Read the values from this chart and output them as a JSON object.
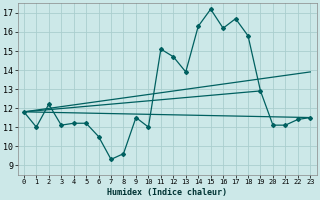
{
  "xlabel": "Humidex (Indice chaleur)",
  "x_ticks": [
    0,
    1,
    2,
    3,
    4,
    5,
    6,
    7,
    8,
    9,
    10,
    11,
    12,
    13,
    14,
    15,
    16,
    17,
    18,
    19,
    20,
    21,
    22,
    23
  ],
  "xlim": [
    -0.5,
    23.5
  ],
  "ylim": [
    8.5,
    17.5
  ],
  "y_ticks": [
    9,
    10,
    11,
    12,
    13,
    14,
    15,
    16,
    17
  ],
  "bg_color": "#cce8e8",
  "grid_color": "#aacece",
  "line_color": "#006060",
  "series1_x": [
    0,
    1,
    2,
    3,
    4,
    5,
    6,
    7,
    8,
    9,
    10,
    11,
    12,
    13,
    14,
    15,
    16,
    17,
    18,
    19,
    20,
    21,
    22,
    23
  ],
  "series1_y": [
    11.8,
    11.0,
    12.2,
    11.1,
    11.2,
    11.2,
    10.5,
    9.3,
    9.6,
    11.5,
    11.0,
    15.1,
    14.7,
    13.9,
    16.3,
    17.2,
    16.2,
    16.7,
    15.8,
    12.9,
    11.1,
    11.1,
    11.4,
    11.5
  ],
  "series2_x": [
    0,
    23
  ],
  "series2_y": [
    11.8,
    11.5
  ],
  "series3_x": [
    0,
    19
  ],
  "series3_y": [
    11.8,
    12.9
  ],
  "series4_x": [
    0,
    23
  ],
  "series4_y": [
    11.8,
    13.9
  ]
}
